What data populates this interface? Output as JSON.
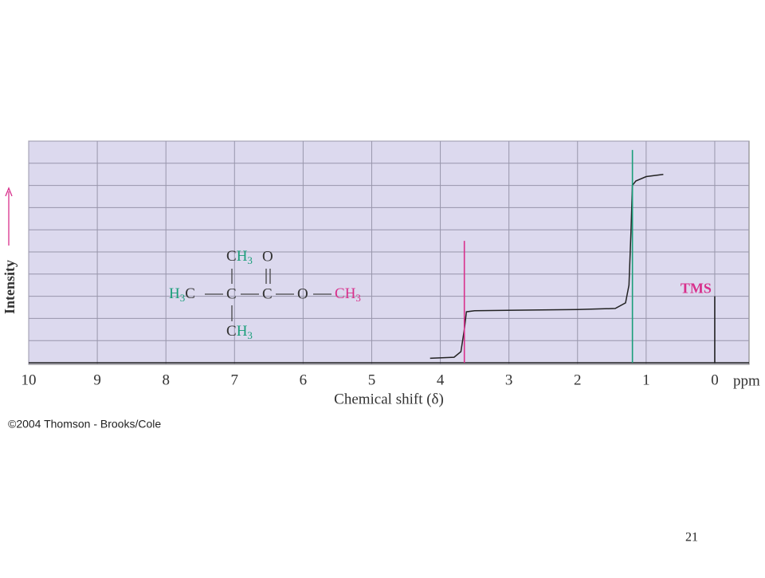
{
  "chart_data": {
    "type": "spectrum",
    "x_label": "Chemical shift (δ)",
    "x_unit": "ppm",
    "y_label": "Intensity",
    "xlim": [
      10,
      -0.5
    ],
    "xticks": [
      10,
      9,
      8,
      7,
      6,
      5,
      4,
      3,
      2,
      1,
      0
    ],
    "ylim": [
      0,
      10
    ],
    "yticks": [
      0,
      1,
      2,
      3,
      4,
      5,
      6,
      7,
      8,
      9,
      10
    ],
    "grid": true,
    "peaks": [
      {
        "x": 3.65,
        "height": 5.5,
        "color": "#d8308c"
      },
      {
        "x": 1.2,
        "height": 9.6,
        "color": "#1a9e7a"
      },
      {
        "x": 0,
        "height": 3.0,
        "color": "#222222",
        "label": "TMS"
      }
    ],
    "integral": {
      "color": "#222222",
      "x": [
        4.15,
        3.8,
        3.7,
        3.65,
        3.62,
        3.5,
        2.0,
        1.45,
        1.3,
        1.25,
        1.22,
        1.2,
        1.15,
        1.0,
        0.75
      ],
      "values": [
        0.2,
        0.25,
        0.5,
        1.5,
        2.3,
        2.35,
        2.4,
        2.45,
        2.7,
        3.5,
        6.0,
        8.0,
        8.2,
        8.4,
        8.5
      ]
    }
  },
  "structure": {
    "top_methyl": [
      "C",
      "H",
      "3"
    ],
    "top_oxygen": "O",
    "left_methyl": [
      "H",
      "3",
      "C"
    ],
    "center_carbon": "C",
    "carbonyl_carbon": "C",
    "ester_oxygen": "O",
    "ester_methyl": [
      "C",
      "H",
      "3"
    ],
    "bottom_methyl": [
      "C",
      "H",
      "3"
    ]
  },
  "footer": {
    "copyright": "©2004 Thomson - Brooks/Cole",
    "page_number": "21"
  }
}
